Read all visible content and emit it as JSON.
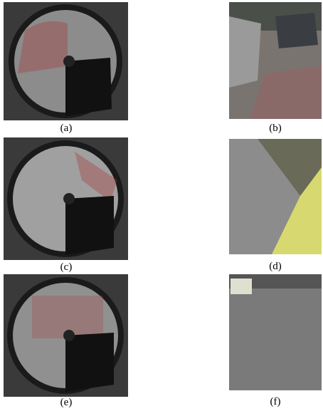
{
  "figure": {
    "captions": [
      "(a)",
      "(b)",
      "(c)",
      "(d)",
      "(e)",
      "(f)"
    ]
  }
}
